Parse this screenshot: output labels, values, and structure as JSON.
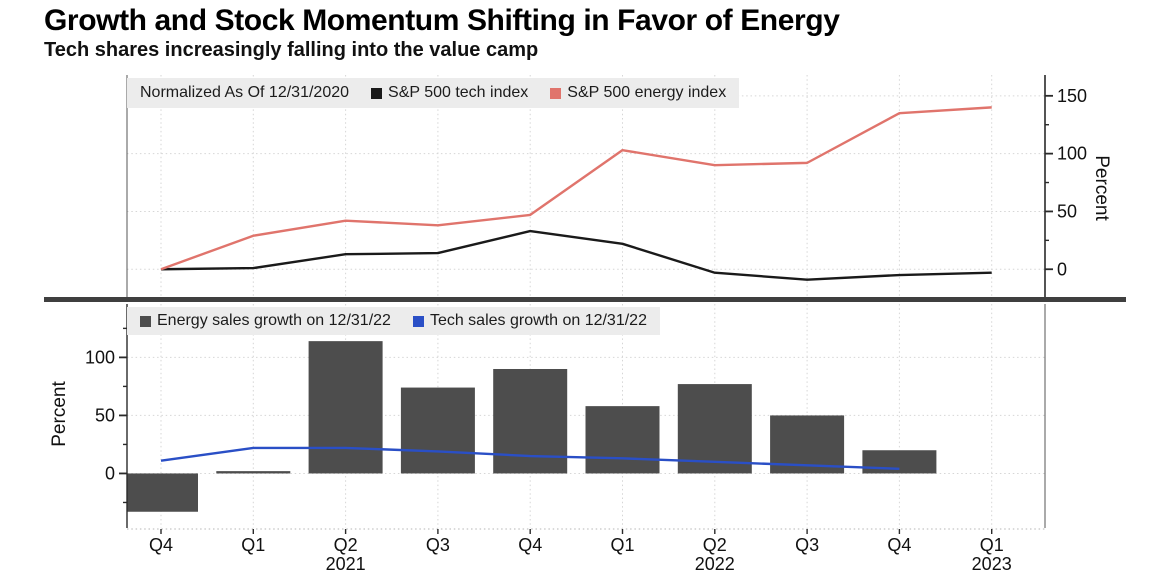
{
  "header": {
    "title": "Growth and Stock Momentum Shifting in Favor of Energy",
    "subtitle": "Tech shares increasingly falling into the value camp"
  },
  "colors": {
    "tech_line": "#1a1a1a",
    "energy_line": "#e0746c",
    "energy_bar": "#4d4d4d",
    "tech_sales_line": "#2a4fc6",
    "legend_bg": "#ececec",
    "grid": "#d6d6d6",
    "axis": "#2a2a2a",
    "separator": "#3f3f3f",
    "background": "#ffffff"
  },
  "x_axis": {
    "quarters": [
      "Q4",
      "Q1",
      "Q2",
      "Q3",
      "Q4",
      "Q1",
      "Q2",
      "Q3",
      "Q4",
      "Q1"
    ],
    "years": [
      {
        "index": 2,
        "label": "2021"
      },
      {
        "index": 6,
        "label": "2022"
      },
      {
        "index": 9,
        "label": "2023"
      }
    ]
  },
  "chart_data": [
    {
      "type": "line",
      "note": "Normalized As Of 12/31/2020",
      "categories": [
        "Q4 2020",
        "Q1 2021",
        "Q2 2021",
        "Q3 2021",
        "Q4 2021",
        "Q1 2022",
        "Q2 2022",
        "Q3 2022",
        "Q4 2022",
        "Q1 2023"
      ],
      "series": [
        {
          "name": "S&P 500 tech index",
          "kind": "line",
          "color": "#1a1a1a",
          "values": [
            0,
            1,
            13,
            14,
            33,
            22,
            -3,
            -9,
            -5,
            -3
          ]
        },
        {
          "name": "S&P 500 energy index",
          "kind": "line",
          "color": "#e0746c",
          "values": [
            0,
            29,
            42,
            38,
            47,
            103,
            90,
            92,
            135,
            140
          ]
        }
      ],
      "ylabel": "Percent",
      "yticks": [
        0,
        50,
        100,
        150
      ],
      "minor_yticks": [
        25,
        75,
        125
      ],
      "ylim": [
        -24,
        168
      ],
      "axis_side": "right",
      "grid": true,
      "legend_position": "top-left"
    },
    {
      "type": "bar",
      "categories": [
        "Q4 2020",
        "Q1 2021",
        "Q2 2021",
        "Q3 2021",
        "Q4 2021",
        "Q1 2022",
        "Q2 2022",
        "Q3 2022",
        "Q4 2022",
        "Q1 2023"
      ],
      "series": [
        {
          "name": "Energy sales growth on 12/31/22",
          "kind": "bar",
          "color": "#4d4d4d",
          "values": [
            -33,
            2,
            114,
            74,
            90,
            58,
            77,
            50,
            20,
            null
          ]
        },
        {
          "name": "Tech sales growth on 12/31/22",
          "kind": "line",
          "color": "#2a4fc6",
          "values": [
            11,
            22,
            22,
            19,
            15,
            13,
            10,
            7,
            4,
            null
          ]
        }
      ],
      "ylabel": "Percent",
      "yticks": [
        0,
        50,
        100
      ],
      "minor_yticks": [
        -25,
        25,
        75,
        125
      ],
      "ylim": [
        -47,
        146
      ],
      "axis_side": "left",
      "grid": true,
      "legend_position": "top-left"
    }
  ]
}
